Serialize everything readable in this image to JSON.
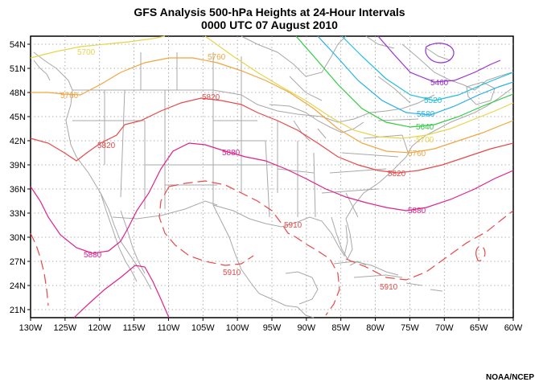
{
  "title": {
    "line1": "GFS Analysis 500-hPa Heights at 24-Hour Intervals",
    "line2": "0000 UTC 07 August 2010"
  },
  "credit": "NOAA/NCEP",
  "axes": {
    "lon_ticks": [
      "130W",
      "125W",
      "120W",
      "115W",
      "110W",
      "105W",
      "100W",
      "95W",
      "90W",
      "85W",
      "80W",
      "75W",
      "70W",
      "65W",
      "60W"
    ],
    "lat_ticks": [
      "54N",
      "51N",
      "48N",
      "45N",
      "42N",
      "39N",
      "36N",
      "33N",
      "30N",
      "27N",
      "24N",
      "21N"
    ],
    "lon_range": [
      -130,
      -60
    ],
    "lat_range": [
      20,
      55
    ],
    "grid": "dotted"
  },
  "colors": {
    "c5460": "#9b30d0",
    "c5520": "#1fbfe0",
    "c5580": "#28b0e8",
    "c5640": "#2ecc40",
    "c5700": "#e8d44a",
    "c5760": "#f0a640",
    "c5820": "#e84848",
    "c5880": "#e0208c",
    "c5910": "#e84848",
    "borders": "#a8a8a8"
  },
  "contour_labels": {
    "l5460": "5460",
    "l5520": "5520",
    "l5580": "5580",
    "l5640": "5640",
    "l5700a": "5700",
    "l5700b": "5700",
    "l5760a": "5760",
    "l5760b": "5760",
    "l5760c": "5760",
    "l5820a": "5820",
    "l5820b": "5820",
    "l5820c": "5820",
    "l5880a": "5880",
    "l5880b": "5880",
    "l5880c": "5880",
    "l5910a": "5910",
    "l5910b": "5910",
    "l5910c": "5910"
  }
}
